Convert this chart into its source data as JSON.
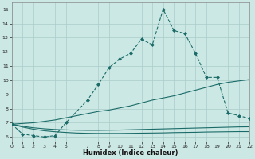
{
  "xlabel": "Humidex (Indice chaleur)",
  "bg_color": "#cce8e4",
  "grid_color": "#aaccca",
  "line_color": "#1a6b68",
  "x_main": [
    0,
    1,
    2,
    3,
    4,
    5,
    7,
    8,
    9,
    10,
    11,
    12,
    13,
    14,
    15,
    16,
    17,
    18,
    19,
    20,
    21,
    22
  ],
  "y_main": [
    6.9,
    6.2,
    6.1,
    6.0,
    6.1,
    7.0,
    8.6,
    9.7,
    10.9,
    11.5,
    11.9,
    12.9,
    12.5,
    15.0,
    13.5,
    13.3,
    11.9,
    10.2,
    10.2,
    7.7,
    7.5,
    7.3
  ],
  "x_env": [
    0,
    1,
    2,
    3,
    4,
    5,
    6,
    7,
    8,
    9,
    10,
    11,
    12,
    13,
    14,
    15,
    16,
    17,
    18,
    19,
    20,
    21,
    22
  ],
  "y_upper": [
    6.9,
    6.95,
    7.0,
    7.1,
    7.2,
    7.35,
    7.5,
    7.65,
    7.8,
    7.9,
    8.05,
    8.2,
    8.4,
    8.6,
    8.75,
    8.9,
    9.1,
    9.3,
    9.5,
    9.7,
    9.85,
    9.95,
    10.05
  ],
  "y_lower1": [
    6.9,
    6.75,
    6.65,
    6.58,
    6.53,
    6.5,
    6.48,
    6.47,
    6.47,
    6.48,
    6.49,
    6.51,
    6.53,
    6.55,
    6.57,
    6.59,
    6.61,
    6.63,
    6.65,
    6.67,
    6.69,
    6.71,
    6.72
  ],
  "y_lower2": [
    6.9,
    6.7,
    6.55,
    6.44,
    6.37,
    6.32,
    6.28,
    6.26,
    6.25,
    6.25,
    6.25,
    6.26,
    6.27,
    6.28,
    6.29,
    6.31,
    6.32,
    6.33,
    6.35,
    6.36,
    6.37,
    6.38,
    6.38
  ],
  "xlim": [
    0,
    22
  ],
  "ylim": [
    5.7,
    15.5
  ],
  "yticks": [
    6,
    7,
    8,
    9,
    10,
    11,
    12,
    13,
    14,
    15
  ],
  "xticks": [
    0,
    1,
    2,
    3,
    4,
    5,
    7,
    8,
    9,
    10,
    11,
    12,
    13,
    14,
    15,
    16,
    17,
    18,
    19,
    20,
    21,
    22
  ]
}
